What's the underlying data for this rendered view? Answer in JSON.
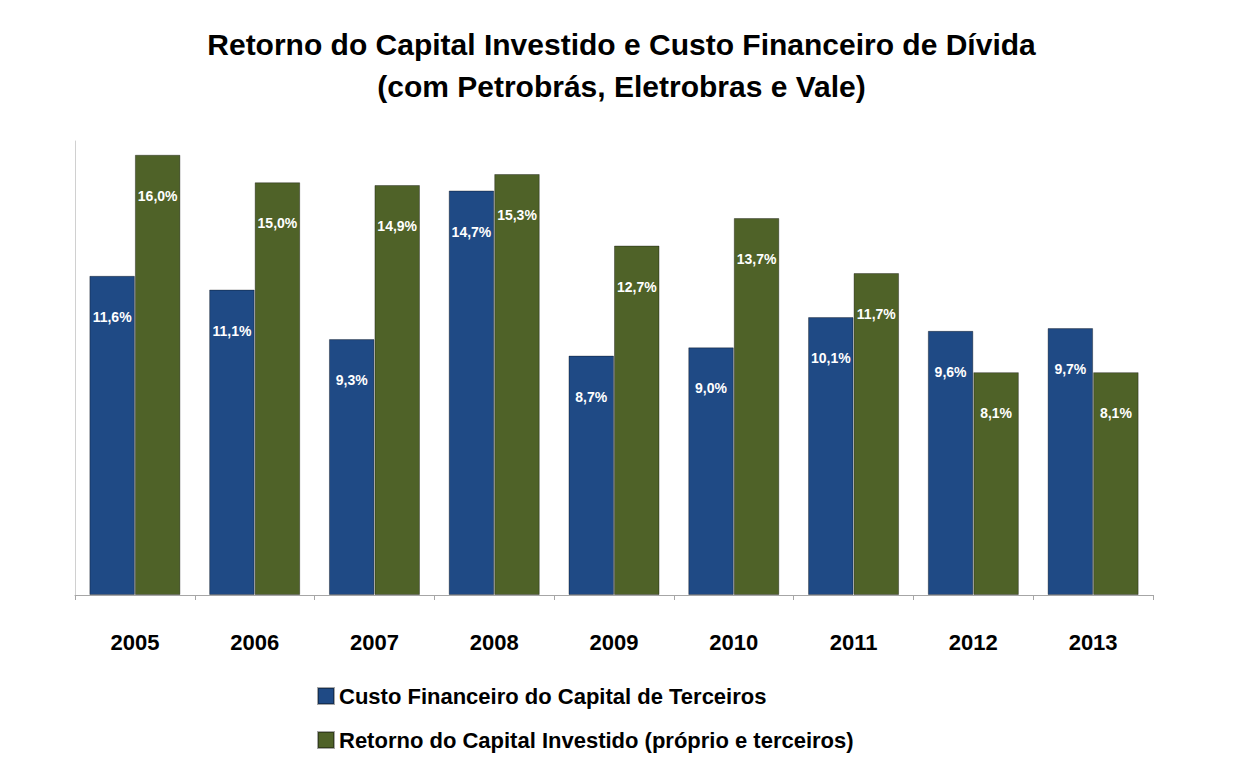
{
  "chart_data": {
    "type": "bar",
    "title": "Retorno do Capital Investido e Custo Financeiro de Dívida\n(com Petrobrás, Eletrobras e Vale)",
    "categories": [
      "2005",
      "2006",
      "2007",
      "2008",
      "2009",
      "2010",
      "2011",
      "2012",
      "2013"
    ],
    "series": [
      {
        "name": "Custo Financeiro do Capital de Terceiros",
        "color": "#1f4a85",
        "values": [
          11.6,
          11.1,
          9.3,
          14.7,
          8.7,
          9.0,
          10.1,
          9.6,
          9.7
        ],
        "value_labels": [
          "11,6%",
          "11,1%",
          "9,3%",
          "14,7%",
          "8,7%",
          "9,0%",
          "10,1%",
          "9,6%",
          "9,7%"
        ]
      },
      {
        "name": "Retorno do Capital Investido (próprio e terceiros)",
        "color": "#4f6228",
        "values": [
          16.0,
          15.0,
          14.9,
          15.3,
          12.7,
          13.7,
          11.7,
          8.1,
          8.1
        ],
        "value_labels": [
          "16,0%",
          "15,0%",
          "14,9%",
          "15,3%",
          "12,7%",
          "13,7%",
          "11,7%",
          "8,1%",
          "8,1%"
        ]
      }
    ],
    "ylim": [
      0,
      16.5
    ],
    "grid": false,
    "legend": "bottom",
    "data_labels": true,
    "tick_labels": "x"
  }
}
